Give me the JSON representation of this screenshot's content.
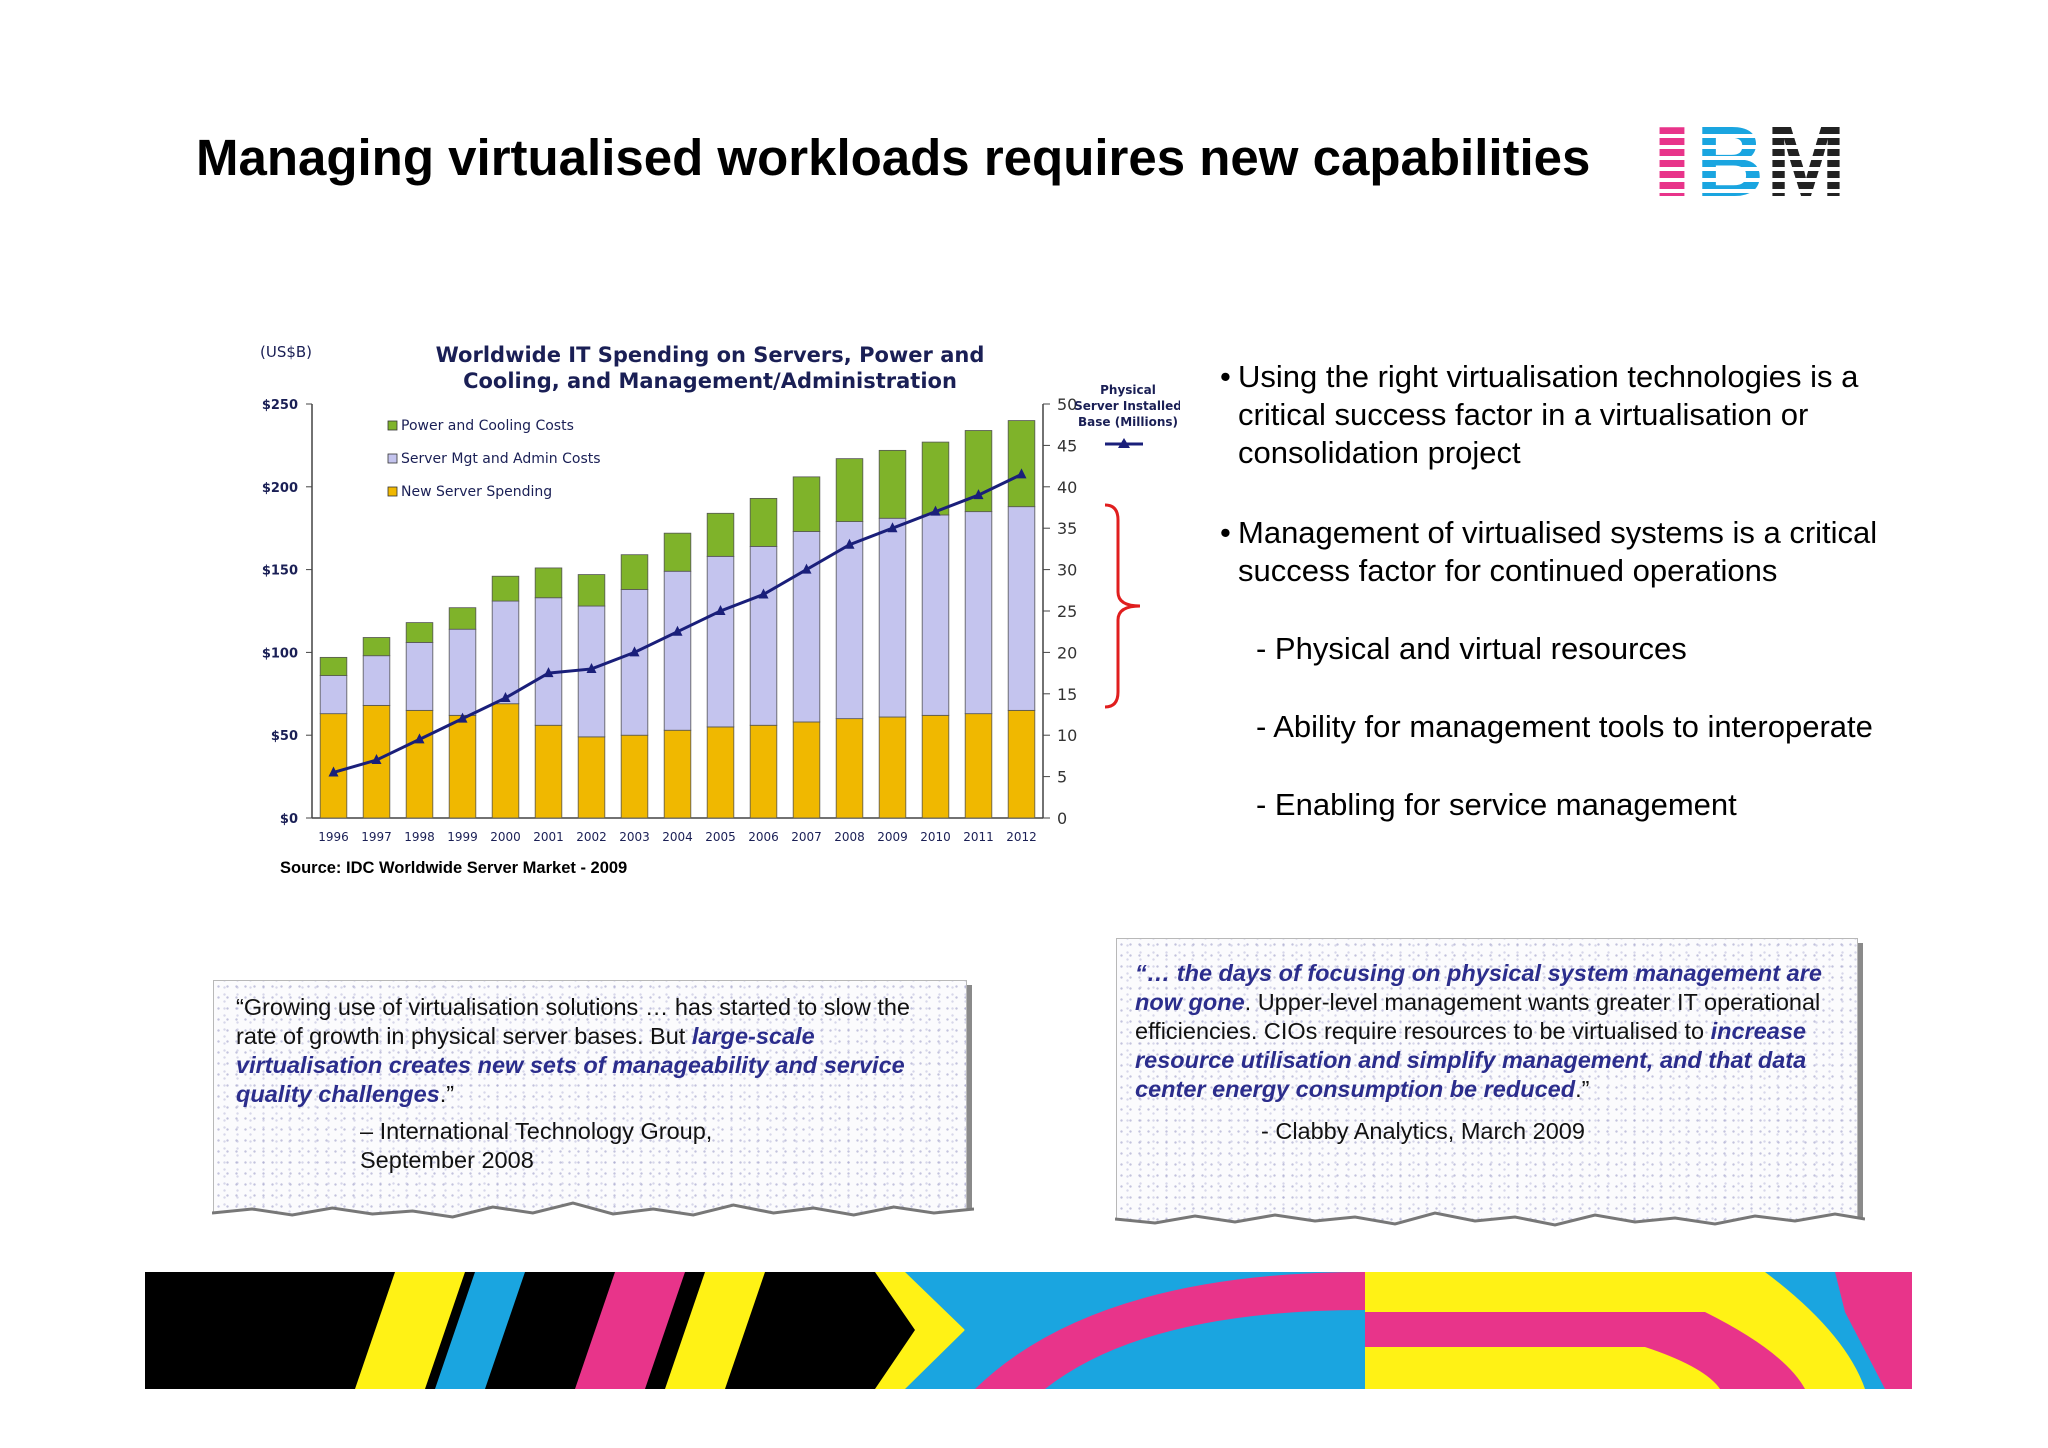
{
  "title": "Managing virtualised workloads requires new capabilities",
  "logo": {
    "text": "IBM"
  },
  "chart": {
    "source": "Source: IDC Worldwide Server Market - 2009"
  },
  "chart_data": {
    "type": "bar",
    "title": "Worldwide IT Spending on Servers, Power and Cooling, and Management/Administration",
    "title_line1": "Worldwide IT Spending on Servers, Power and",
    "title_line2": "Cooling, and Management/Administration",
    "ylabel_left": "(US$B)",
    "ylabel_right": [
      "Physical",
      "Server Installed",
      "Base (Millions)"
    ],
    "ylim_left": [
      0,
      250
    ],
    "ylim_right": [
      0,
      50
    ],
    "left_ticks": [
      "$0",
      "$50",
      "$100",
      "$150",
      "$200",
      "$250"
    ],
    "right_ticks": [
      "0",
      "5",
      "10",
      "15",
      "20",
      "25",
      "30",
      "35",
      "40",
      "45",
      "50"
    ],
    "categories": [
      "1996",
      "1997",
      "1998",
      "1999",
      "2000",
      "2001",
      "2002",
      "2003",
      "2004",
      "2005",
      "2006",
      "2007",
      "2008",
      "2009",
      "2010",
      "2011",
      "2012"
    ],
    "stacked": true,
    "series": [
      {
        "name": "New Server Spending",
        "color": "#f0b800",
        "values": [
          63,
          68,
          65,
          62,
          69,
          56,
          49,
          50,
          53,
          55,
          56,
          58,
          60,
          61,
          62,
          63,
          65
        ]
      },
      {
        "name": "Server Mgt and Admin Costs",
        "color": "#c4c4ee",
        "values": [
          23,
          30,
          41,
          52,
          62,
          77,
          79,
          88,
          96,
          103,
          108,
          115,
          119,
          120,
          121,
          122,
          123
        ]
      },
      {
        "name": "Power and Cooling Costs",
        "color": "#7fb32a",
        "values": [
          11,
          11,
          12,
          13,
          15,
          18,
          19,
          21,
          23,
          26,
          29,
          33,
          38,
          41,
          44,
          49,
          52
        ]
      }
    ],
    "legend": [
      "Power and Cooling Costs",
      "Server Mgt and Admin Costs",
      "New Server Spending"
    ],
    "legend_placement": "top-left",
    "line_series": {
      "name": "Physical Server Installed Base (Millions)",
      "axis": "right",
      "color": "#1a1f7a",
      "values": [
        5.5,
        7,
        9.5,
        12,
        14.5,
        17.5,
        18,
        20,
        22.5,
        25,
        27,
        30,
        33,
        35,
        37,
        39,
        41.5
      ]
    },
    "grid": false
  },
  "bullets": [
    {
      "text": "Using the right virtualisation technologies is a critical success factor in a virtualisation or consolidation project"
    },
    {
      "text": "Management of virtualised systems is a critical success factor for continued operations"
    }
  ],
  "subbullets": [
    "- Physical and virtual resources",
    "- Ability for management tools to interoperate",
    "- Enabling for service management"
  ],
  "quote_left": {
    "p1": "“Growing use of virtualisation solutions … has started to slow the rate of growth in physical server bases.  But ",
    "highlight": "large-scale virtualisation creates new sets of manageability and service quality challenges",
    "p2": ".”",
    "attribution_line1": "– International Technology Group,",
    "attribution_line2": "September 2008"
  },
  "quote_right": {
    "h1": "“… the days of focusing on physical system management are now gone",
    "p1": ". Upper-level management wants greater IT operational efficiencies. CIOs require resources to be virtualised to ",
    "h2": "increase resource utilisation and simplify management, and that data center energy consumption be reduced",
    "p2": ".”",
    "attribution": "- Clabby Analytics, March 2009"
  },
  "colors": {
    "magenta": "#e8348a",
    "cyan": "#1aa5e0",
    "yellow": "#fff215",
    "black": "#000000",
    "navy": "#1a1f7a"
  }
}
